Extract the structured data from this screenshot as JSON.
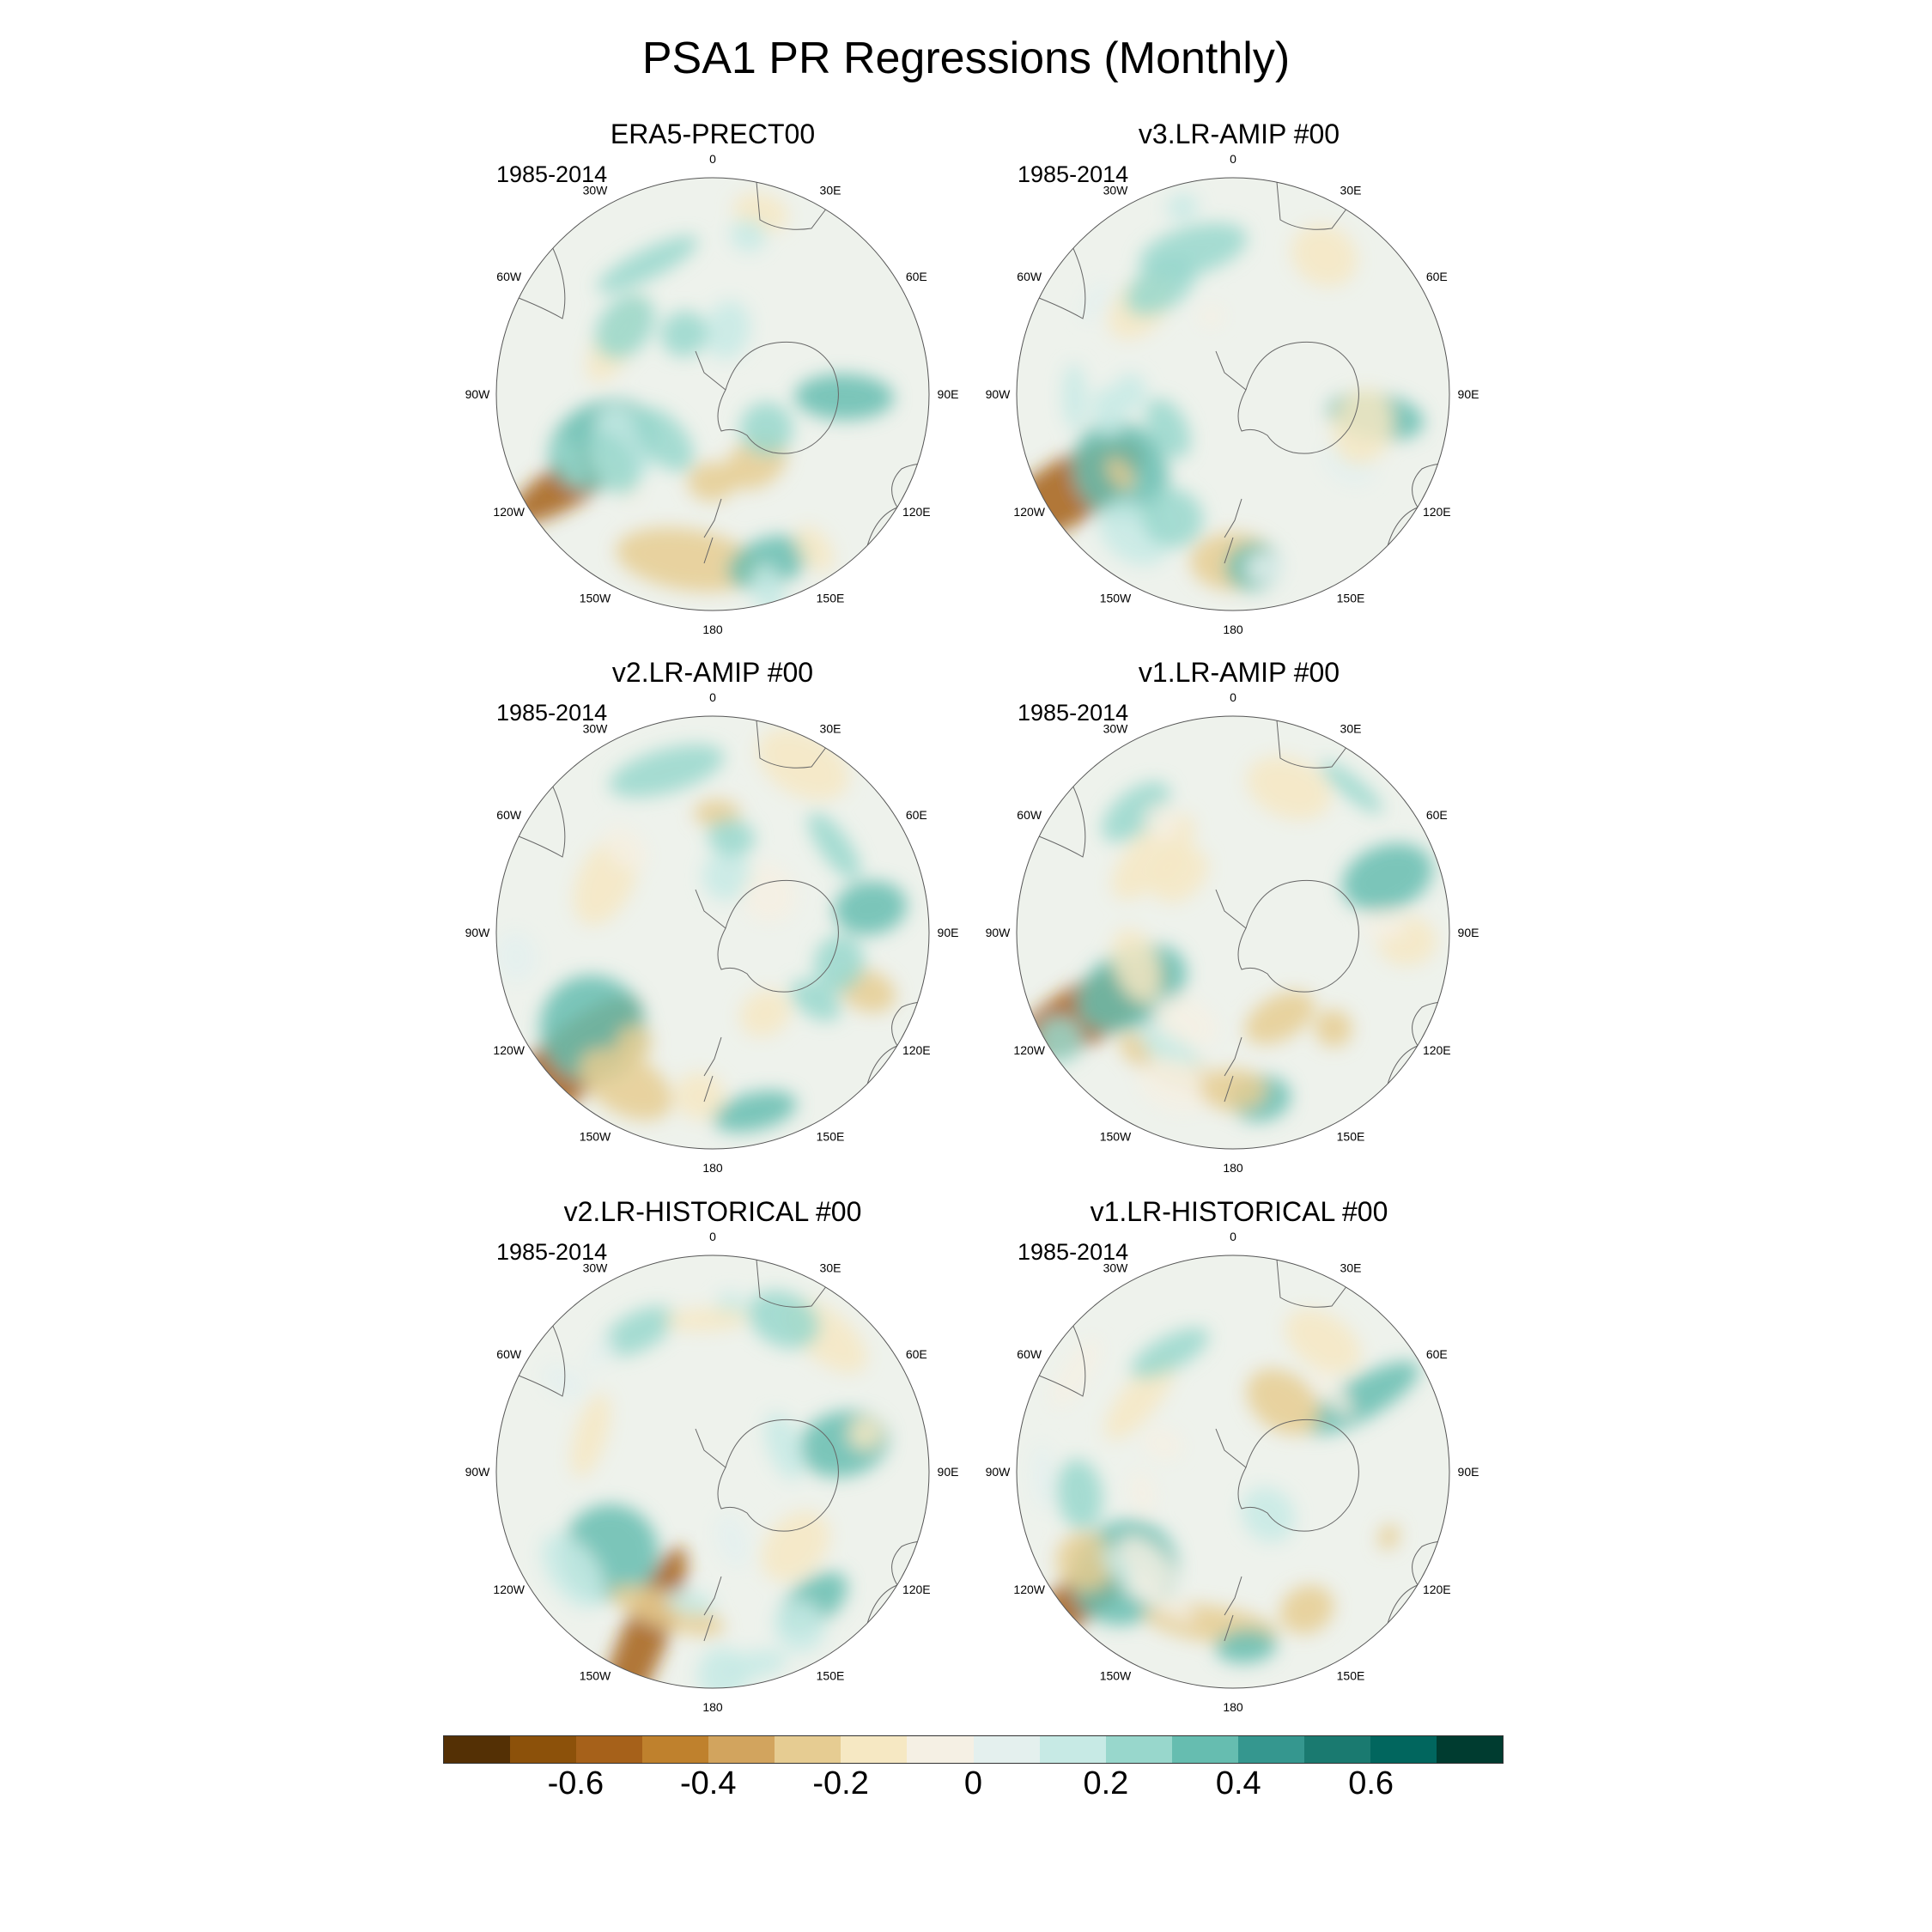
{
  "title": "PSA1 PR Regressions (Monthly)",
  "panels": [
    {
      "title": "ERA5-PRECT00",
      "period": "1985-2014",
      "seed": 11
    },
    {
      "title": "v3.LR-AMIP  #00",
      "period": "1985-2014",
      "seed": 23
    },
    {
      "title": "v2.LR-AMIP  #00",
      "period": "1985-2014",
      "seed": 37
    },
    {
      "title": "v1.LR-AMIP  #00",
      "period": "1985-2014",
      "seed": 41
    },
    {
      "title": "v2.LR-HISTORICAL  #00",
      "period": "1985-2014",
      "seed": 53
    },
    {
      "title": "v1.LR-HISTORICAL  #00",
      "period": "1985-2014",
      "seed": 67
    }
  ],
  "longitude_labels": [
    "0",
    "30E",
    "60E",
    "90E",
    "120E",
    "150E",
    "180",
    "150W",
    "120W",
    "90W",
    "60W",
    "30W"
  ],
  "colorbar": {
    "colors": [
      "#543005",
      "#8c510a",
      "#a6611a",
      "#bf812d",
      "#d2a45e",
      "#e6cc92",
      "#f6e8c3",
      "#f5f0e4",
      "#e4f0ee",
      "#c7eae5",
      "#98d7cc",
      "#66bdb0",
      "#35978f",
      "#1a7a70",
      "#01665e",
      "#003c30"
    ],
    "labels": [
      "-0.6",
      "-0.4",
      "-0.2",
      "0",
      "0.2",
      "0.4",
      "0.6"
    ],
    "label_values": [
      -0.6,
      -0.4,
      -0.2,
      0,
      0.2,
      0.4,
      0.6
    ]
  }
}
